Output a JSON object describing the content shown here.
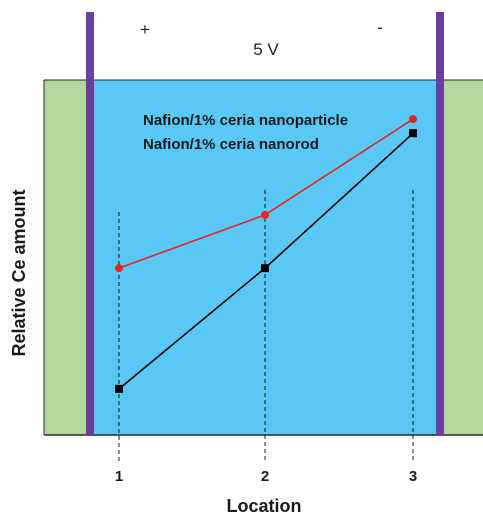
{
  "top": {
    "plus": "+",
    "minus": "-",
    "voltage": "5 V"
  },
  "colors": {
    "background_outer": "#b3d89c",
    "background_inner": "#5ac8f5",
    "electrode": "#6a3f9c",
    "nanoparticle": "#e8231f",
    "nanorod": "#000000"
  },
  "chart_data": {
    "type": "line",
    "xlabel": "Location",
    "ylabel": "Relative Ce amount",
    "x": [
      1,
      2,
      3
    ],
    "x_tick_labels": [
      "1",
      "2",
      "3"
    ],
    "y_tick_labels": [],
    "ylim": [
      0,
      1
    ],
    "grid": "vertical dashed lines at each location",
    "legend_placement": "top-center",
    "series": [
      {
        "name": "Nafion/1% ceria nanoparticle",
        "color": "#e8231f",
        "marker": "circle",
        "values": [
          0.47,
          0.62,
          0.89
        ]
      },
      {
        "name": "Nafion/1% ceria nanorod",
        "color": "#000000",
        "marker": "square",
        "values": [
          0.13,
          0.47,
          0.85
        ]
      }
    ]
  }
}
